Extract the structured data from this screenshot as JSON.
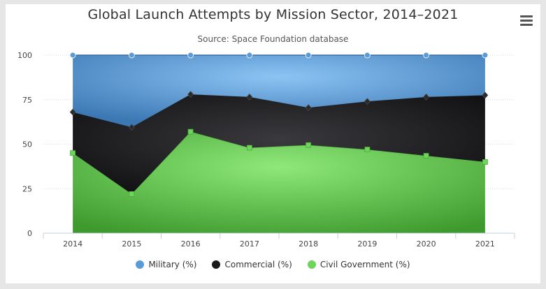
{
  "header": {
    "title": "Global Launch Attempts by Mission Sector, 2014–2021",
    "subtitle": "Source: Space Foundation database",
    "menu_icon": "hamburger-menu-icon"
  },
  "chart_data": {
    "type": "area",
    "stacking": "percent",
    "title": "Global Launch Attempts by Mission Sector, 2014–2021",
    "subtitle": "Source: Space Foundation database",
    "categories": [
      "2014",
      "2015",
      "2016",
      "2017",
      "2018",
      "2019",
      "2020",
      "2021"
    ],
    "yticks": [
      "0",
      "25",
      "50",
      "75",
      "100"
    ],
    "ylim": [
      0,
      100
    ],
    "grid": true,
    "legend_position": "bottom",
    "series": [
      {
        "name": "Civil Government (%)",
        "values": [
          45,
          22,
          57,
          48,
          49.5,
          47,
          43.5,
          40
        ],
        "color": "#6ed45a",
        "marker": "square"
      },
      {
        "name": "Commercial (%)",
        "values": [
          23,
          37.5,
          21,
          28.5,
          21,
          27,
          33,
          37.5
        ],
        "color": "#1a1a1a",
        "marker": "diamond"
      },
      {
        "name": "Military (%)",
        "values": [
          32,
          40.5,
          22,
          23.5,
          29.5,
          26,
          23.5,
          22.5
        ],
        "color": "#5a9ad6",
        "marker": "circle"
      }
    ]
  }
}
